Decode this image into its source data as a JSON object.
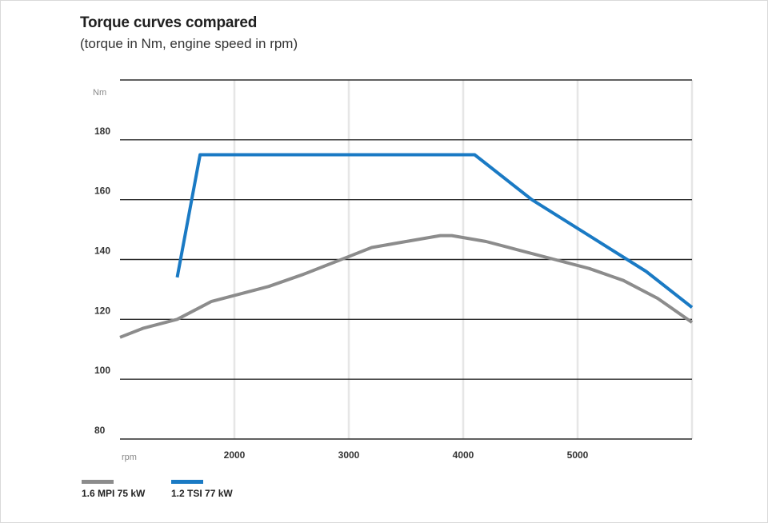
{
  "chart_data": {
    "type": "line",
    "title": "Torque curves compared",
    "subtitle": "(torque in Nm, engine speed in rpm)",
    "xlabel": "rpm",
    "ylabel": "Nm",
    "xlim": [
      1000,
      6000
    ],
    "ylim": [
      80,
      200
    ],
    "xticks": [
      2000,
      3000,
      4000,
      5000
    ],
    "yticks": [
      80,
      100,
      120,
      140,
      160,
      180
    ],
    "grid": true,
    "legend_position": "bottom-left",
    "series": [
      {
        "name": "1.6 MPI 75 kW",
        "color": "#8c8c8c",
        "points": [
          [
            1000,
            114
          ],
          [
            1200,
            117
          ],
          [
            1500,
            120
          ],
          [
            1800,
            126
          ],
          [
            2000,
            128
          ],
          [
            2300,
            131
          ],
          [
            2600,
            135
          ],
          [
            2800,
            138
          ],
          [
            3000,
            141
          ],
          [
            3200,
            144
          ],
          [
            3500,
            146
          ],
          [
            3800,
            148
          ],
          [
            3900,
            148
          ],
          [
            4200,
            146
          ],
          [
            4500,
            143
          ],
          [
            4800,
            140
          ],
          [
            5100,
            137
          ],
          [
            5400,
            133
          ],
          [
            5700,
            127
          ],
          [
            6000,
            119
          ]
        ]
      },
      {
        "name": "1.2 TSI 77 kW",
        "color": "#1a7ac4",
        "points": [
          [
            1500,
            134
          ],
          [
            1700,
            175
          ],
          [
            4100,
            175
          ],
          [
            4600,
            160
          ],
          [
            5100,
            148
          ],
          [
            5600,
            136
          ],
          [
            6000,
            124
          ]
        ]
      }
    ]
  }
}
